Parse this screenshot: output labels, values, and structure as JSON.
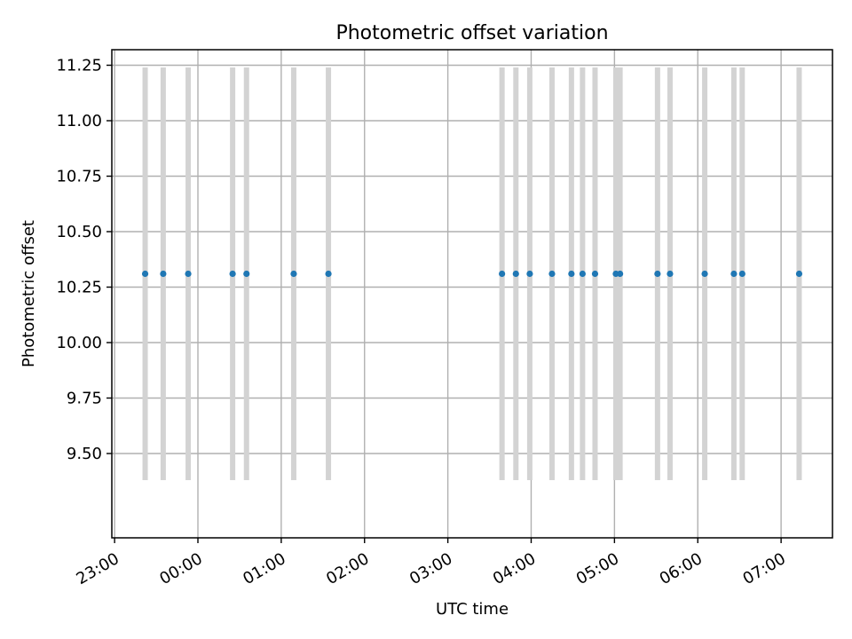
{
  "chart_data": {
    "type": "scatter",
    "title": "Photometric offset variation",
    "xlabel": "UTC time",
    "ylabel": "Photometric offset",
    "grid": true,
    "xlim": [
      "22:58",
      "07:37"
    ],
    "ylim": [
      9.12,
      11.32
    ],
    "xticks": [
      "23:00",
      "00:00",
      "01:00",
      "02:00",
      "03:00",
      "04:00",
      "05:00",
      "06:00",
      "07:00"
    ],
    "yticks": [
      "9.50",
      "9.75",
      "10.00",
      "10.25",
      "10.50",
      "10.75",
      "11.00",
      "11.25"
    ],
    "band_range": [
      9.38,
      11.24
    ],
    "colors": {
      "point": "#1f77b4",
      "band": "#d3d3d3",
      "grid": "#b0b0b0"
    },
    "series": [
      {
        "x": [
          "23:22",
          "23:35",
          "23:53",
          "00:25",
          "00:35",
          "01:09",
          "01:34",
          "03:39",
          "03:49",
          "03:59",
          "04:15",
          "04:29",
          "04:37",
          "04:46",
          "05:01",
          "05:04",
          "05:31",
          "05:40",
          "06:05",
          "06:26",
          "06:32",
          "07:13"
        ],
        "y": [
          10.31,
          10.31,
          10.31,
          10.31,
          10.31,
          10.31,
          10.31,
          10.31,
          10.31,
          10.31,
          10.31,
          10.31,
          10.31,
          10.31,
          10.31,
          10.31,
          10.31,
          10.31,
          10.31,
          10.31,
          10.31,
          10.31
        ]
      }
    ]
  }
}
